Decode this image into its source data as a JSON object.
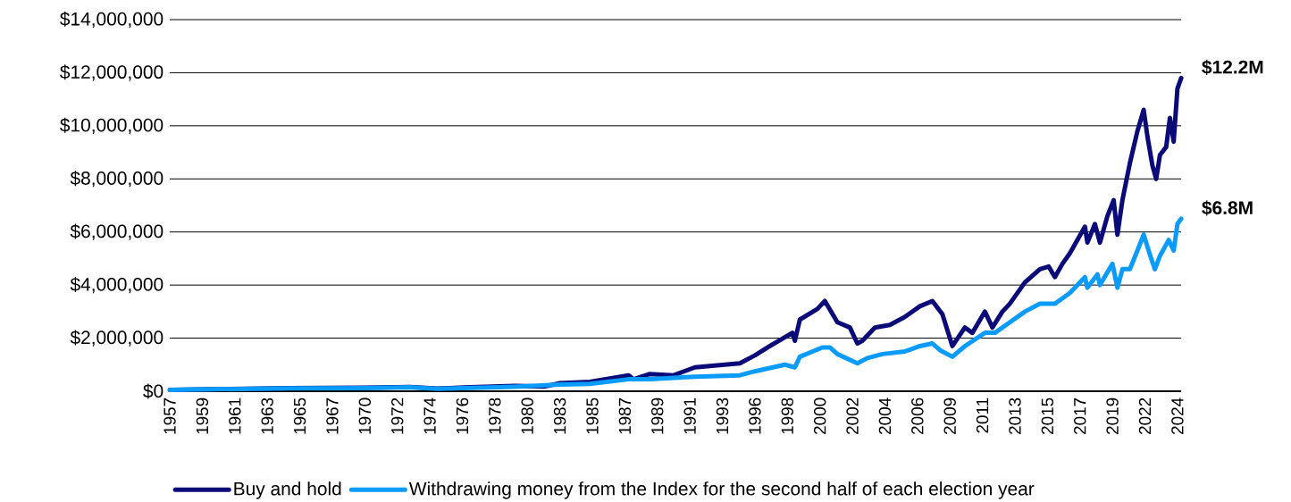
{
  "chart_data": {
    "type": "line",
    "grid": "y",
    "legend": "bottom",
    "marker": "none",
    "line_style": "solid",
    "xlim": [
      "1957-01",
      "2024-06"
    ],
    "ylim": [
      0,
      14000000
    ],
    "xticks": [
      {
        "value": "1957-01",
        "label": "1957"
      },
      {
        "value": "1959-03",
        "label": "1959"
      },
      {
        "value": "1961-05",
        "label": "1961"
      },
      {
        "value": "1963-07",
        "label": "1963"
      },
      {
        "value": "1965-09",
        "label": "1965"
      },
      {
        "value": "1967-11",
        "label": "1967"
      },
      {
        "value": "1970-01",
        "label": "1970"
      },
      {
        "value": "1972-03",
        "label": "1972"
      },
      {
        "value": "1974-05",
        "label": "1974"
      },
      {
        "value": "1976-07",
        "label": "1976"
      },
      {
        "value": "1978-09",
        "label": "1978"
      },
      {
        "value": "1980-11",
        "label": "1980"
      },
      {
        "value": "1983-01",
        "label": "1983"
      },
      {
        "value": "1985-03",
        "label": "1985"
      },
      {
        "value": "1987-05",
        "label": "1987"
      },
      {
        "value": "1989-07",
        "label": "1989"
      },
      {
        "value": "1991-09",
        "label": "1991"
      },
      {
        "value": "1993-11",
        "label": "1993"
      },
      {
        "value": "1996-01",
        "label": "1996"
      },
      {
        "value": "1998-03",
        "label": "1998"
      },
      {
        "value": "2000-05",
        "label": "2000"
      },
      {
        "value": "2002-07",
        "label": "2002"
      },
      {
        "value": "2004-09",
        "label": "2004"
      },
      {
        "value": "2006-11",
        "label": "2006"
      },
      {
        "value": "2009-01",
        "label": "2009"
      },
      {
        "value": "2011-03",
        "label": "2011"
      },
      {
        "value": "2013-05",
        "label": "2013"
      },
      {
        "value": "2015-07",
        "label": "2015"
      },
      {
        "value": "2017-09",
        "label": "2017"
      },
      {
        "value": "2019-11",
        "label": "2019"
      },
      {
        "value": "2022-01",
        "label": "2022"
      },
      {
        "value": "2024-03",
        "label": "2024"
      }
    ],
    "yticks": [
      {
        "value": 0,
        "label": "$0"
      },
      {
        "value": 2000000,
        "label": "$2,000,000"
      },
      {
        "value": 4000000,
        "label": "$4,000,000"
      },
      {
        "value": 6000000,
        "label": "$6,000,000"
      },
      {
        "value": 8000000,
        "label": "$8,000,000"
      },
      {
        "value": 10000000,
        "label": "$10,000,000"
      },
      {
        "value": 12000000,
        "label": "$12,000,000"
      },
      {
        "value": 14000000,
        "label": "$14,000,000"
      }
    ],
    "series": [
      {
        "name": "Buy and hold",
        "color": "#0a0a78",
        "x": [
          "1957-01",
          "1961-01",
          "1965-01",
          "1970-01",
          "1973-01",
          "1974-11",
          "1977-01",
          "1980-01",
          "1982-01",
          "1983-01",
          "1985-01",
          "1987-08",
          "1987-12",
          "1989-01",
          "1990-08",
          "1992-01",
          "1994-01",
          "1995-01",
          "1996-01",
          "1997-01",
          "1998-07",
          "1998-09",
          "1999-01",
          "2000-03",
          "2000-09",
          "2001-07",
          "2002-05",
          "2002-11",
          "2003-03",
          "2004-01",
          "2005-01",
          "2006-01",
          "2007-01",
          "2007-11",
          "2008-07",
          "2009-03",
          "2010-01",
          "2010-07",
          "2011-05",
          "2011-11",
          "2012-07",
          "2013-01",
          "2014-01",
          "2015-01",
          "2015-08",
          "2016-01",
          "2016-07",
          "2017-01",
          "2018-01",
          "2018-03",
          "2018-09",
          "2019-01",
          "2019-07",
          "2019-12",
          "2020-03",
          "2020-07",
          "2021-01",
          "2021-07",
          "2021-12",
          "2022-03",
          "2022-07",
          "2022-10",
          "2023-01",
          "2023-06",
          "2023-09",
          "2023-12",
          "2024-03",
          "2024-06"
        ],
        "values": [
          50000,
          80000,
          120000,
          130000,
          160000,
          100000,
          150000,
          200000,
          180000,
          300000,
          350000,
          600000,
          450000,
          650000,
          600000,
          900000,
          1000000,
          1050000,
          1350000,
          1700000,
          2200000,
          1900000,
          2700000,
          3100000,
          3400000,
          2600000,
          2400000,
          1800000,
          1900000,
          2400000,
          2500000,
          2800000,
          3200000,
          3400000,
          2900000,
          1700000,
          2400000,
          2200000,
          3000000,
          2400000,
          3000000,
          3300000,
          4100000,
          4600000,
          4700000,
          4300000,
          4800000,
          5200000,
          6200000,
          5600000,
          6300000,
          5600000,
          6600000,
          7200000,
          5900000,
          7200000,
          8600000,
          9800000,
          10600000,
          9600000,
          8500000,
          8000000,
          8900000,
          9200000,
          10300000,
          9400000,
          11400000,
          11800000
        ]
      },
      {
        "name": "Withdrawing money from the Index for the second half of each election year",
        "color": "#0a9bff",
        "x": [
          "1957-01",
          "1965-01",
          "1970-01",
          "1973-01",
          "1974-11",
          "1980-01",
          "1983-01",
          "1985-01",
          "1987-08",
          "1989-01",
          "1992-01",
          "1995-01",
          "1996-01",
          "1998-01",
          "1998-09",
          "1999-01",
          "2000-07",
          "2001-01",
          "2001-07",
          "2002-11",
          "2003-07",
          "2004-07",
          "2006-01",
          "2007-01",
          "2007-11",
          "2008-05",
          "2009-03",
          "2010-01",
          "2011-05",
          "2012-01",
          "2013-01",
          "2014-01",
          "2015-01",
          "2016-01",
          "2017-01",
          "2018-01",
          "2018-03",
          "2018-11",
          "2019-01",
          "2019-11",
          "2020-03",
          "2020-07",
          "2021-01",
          "2021-07",
          "2021-12",
          "2022-06",
          "2022-09",
          "2023-01",
          "2023-08",
          "2023-12",
          "2024-03",
          "2024-06"
        ],
        "values": [
          50000,
          110000,
          120000,
          150000,
          90000,
          170000,
          250000,
          280000,
          450000,
          450000,
          550000,
          600000,
          750000,
          1000000,
          900000,
          1300000,
          1650000,
          1650000,
          1400000,
          1050000,
          1250000,
          1400000,
          1500000,
          1700000,
          1800000,
          1550000,
          1300000,
          1700000,
          2200000,
          2200000,
          2600000,
          3000000,
          3300000,
          3300000,
          3700000,
          4300000,
          3900000,
          4400000,
          4000000,
          4800000,
          3900000,
          4600000,
          4600000,
          5300000,
          5900000,
          5000000,
          4600000,
          5100000,
          5700000,
          5300000,
          6300000,
          6500000
        ]
      }
    ],
    "annotations": [
      "$12.2M",
      "$6.8M"
    ]
  }
}
